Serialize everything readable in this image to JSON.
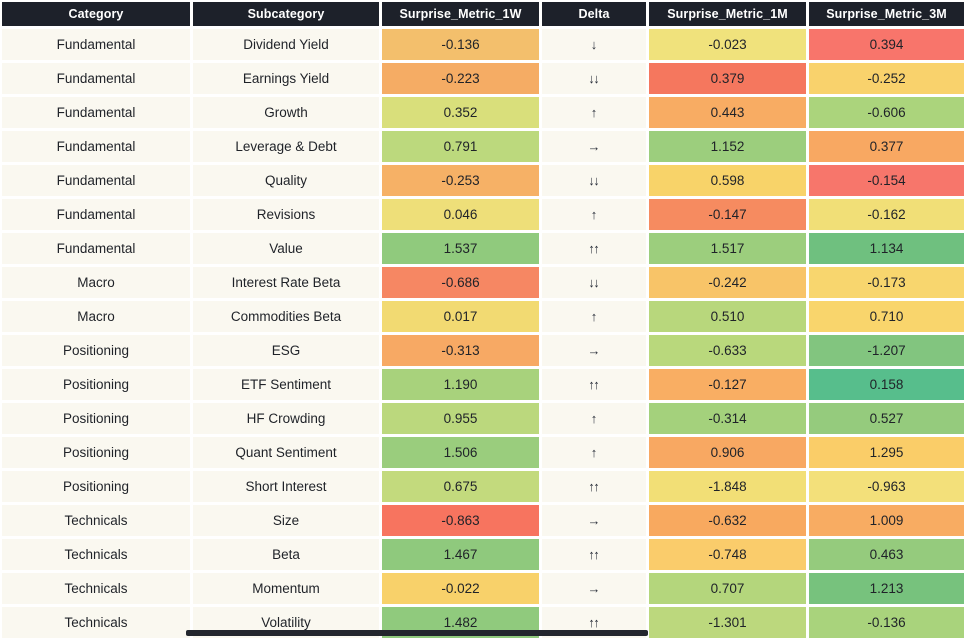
{
  "chart_data": {
    "type": "table",
    "title": "Factor surprise metrics heatmap table",
    "columns": [
      "Category",
      "Subcategory",
      "Surprise_Metric_1W",
      "Delta",
      "Surprise_Metric_1M",
      "Surprise_Metric_3M"
    ],
    "rows": [
      {
        "category": "Fundamental",
        "subcategory": "Dividend Yield",
        "surprise_1w": "-0.136",
        "surprise_1w_color": "#F3BF6C",
        "delta": "↓",
        "surprise_1m": "-0.023",
        "surprise_1m_color": "#F0E27C",
        "surprise_3m": "0.394",
        "surprise_3m_color": "#F8756B"
      },
      {
        "category": "Fundamental",
        "subcategory": "Earnings Yield",
        "surprise_1w": "-0.223",
        "surprise_1w_color": "#F5AC64",
        "delta": "↓↓",
        "surprise_1m": "0.379",
        "surprise_1m_color": "#F5775E",
        "surprise_3m": "-0.252",
        "surprise_3m_color": "#F9D26C"
      },
      {
        "category": "Fundamental",
        "subcategory": "Growth",
        "surprise_1w": "0.352",
        "surprise_1w_color": "#D9DF7B",
        "delta": "↑",
        "surprise_1m": "0.443",
        "surprise_1m_color": "#F8AC63",
        "surprise_3m": "-0.606",
        "surprise_3m_color": "#ABD47C"
      },
      {
        "category": "Fundamental",
        "subcategory": "Leverage & Debt",
        "surprise_1w": "0.791",
        "surprise_1w_color": "#BCD97D",
        "delta": "→",
        "surprise_1m": "1.152",
        "surprise_1m_color": "#9CCE7D",
        "surprise_3m": "0.377",
        "surprise_3m_color": "#F8A862"
      },
      {
        "category": "Fundamental",
        "subcategory": "Quality",
        "surprise_1w": "-0.253",
        "surprise_1w_color": "#F6B166",
        "delta": "↓↓",
        "surprise_1m": "0.598",
        "surprise_1m_color": "#F8D369",
        "surprise_3m": "-0.154",
        "surprise_3m_color": "#F7766B"
      },
      {
        "category": "Fundamental",
        "subcategory": "Revisions",
        "surprise_1w": "0.046",
        "surprise_1w_color": "#EEDF79",
        "delta": "↑",
        "surprise_1m": "-0.147",
        "surprise_1m_color": "#F68B60",
        "surprise_3m": "-0.162",
        "surprise_3m_color": "#F1DF77"
      },
      {
        "category": "Fundamental",
        "subcategory": "Value",
        "surprise_1w": "1.537",
        "surprise_1w_color": "#90CA7D",
        "delta": "↑↑",
        "surprise_1m": "1.517",
        "surprise_1m_color": "#9CCE7D",
        "surprise_3m": "1.134",
        "surprise_3m_color": "#6FC07F"
      },
      {
        "category": "Macro",
        "subcategory": "Interest Rate Beta",
        "surprise_1w": "-0.686",
        "surprise_1w_color": "#F68763",
        "delta": "↓↓",
        "surprise_1m": "-0.242",
        "surprise_1m_color": "#F8C468",
        "surprise_3m": "-0.173",
        "surprise_3m_color": "#F8D66E"
      },
      {
        "category": "Macro",
        "subcategory": "Commodities Beta",
        "surprise_1w": "0.017",
        "surprise_1w_color": "#F2DA72",
        "delta": "↑",
        "surprise_1m": "0.510",
        "surprise_1m_color": "#B8D77C",
        "surprise_3m": "0.710",
        "surprise_3m_color": "#F9D56C"
      },
      {
        "category": "Positioning",
        "subcategory": "ESG",
        "surprise_1w": "-0.313",
        "surprise_1w_color": "#F7A964",
        "delta": "→",
        "surprise_1m": "-0.633",
        "surprise_1m_color": "#B9D87C",
        "surprise_3m": "-1.207",
        "surprise_3m_color": "#82C57F"
      },
      {
        "category": "Positioning",
        "subcategory": "ETF Sentiment",
        "surprise_1w": "1.190",
        "surprise_1w_color": "#A8D27C",
        "delta": "↑↑",
        "surprise_1m": "-0.127",
        "surprise_1m_color": "#F9AE63",
        "surprise_3m": "0.158",
        "surprise_3m_color": "#57BE8C"
      },
      {
        "category": "Positioning",
        "subcategory": "HF Crowding",
        "surprise_1w": "0.955",
        "surprise_1w_color": "#BBD87D",
        "delta": "↑",
        "surprise_1m": "-0.314",
        "surprise_1m_color": "#A4D17C",
        "surprise_3m": "0.527",
        "surprise_3m_color": "#95CB7D"
      },
      {
        "category": "Positioning",
        "subcategory": "Quant Sentiment",
        "surprise_1w": "1.506",
        "surprise_1w_color": "#9ACD7D",
        "delta": "↑",
        "surprise_1m": "0.906",
        "surprise_1m_color": "#F8A862",
        "surprise_3m": "1.295",
        "surprise_3m_color": "#FACD68"
      },
      {
        "category": "Positioning",
        "subcategory": "Short Interest",
        "surprise_1w": "0.675",
        "surprise_1w_color": "#C3DA7D",
        "delta": "↑↑",
        "surprise_1m": "-1.848",
        "surprise_1m_color": "#F2DF76",
        "surprise_3m": "-0.963",
        "surprise_3m_color": "#F3E07A"
      },
      {
        "category": "Technicals",
        "subcategory": "Size",
        "surprise_1w": "-0.863",
        "surprise_1w_color": "#F7745F",
        "delta": "→",
        "surprise_1m": "-0.632",
        "surprise_1m_color": "#F8A95F",
        "surprise_3m": "1.009",
        "surprise_3m_color": "#F8AC62"
      },
      {
        "category": "Technicals",
        "subcategory": "Beta",
        "surprise_1w": "1.467",
        "surprise_1w_color": "#8FC97D",
        "delta": "↑↑",
        "surprise_1m": "-0.748",
        "surprise_1m_color": "#FACC6B",
        "surprise_3m": "0.463",
        "surprise_3m_color": "#95CB7D"
      },
      {
        "category": "Technicals",
        "subcategory": "Momentum",
        "surprise_1w": "-0.022",
        "surprise_1w_color": "#F8D16A",
        "delta": "→",
        "surprise_1m": "0.707",
        "surprise_1m_color": "#B4D67C",
        "surprise_3m": "1.213",
        "surprise_3m_color": "#77C27D"
      },
      {
        "category": "Technicals",
        "subcategory": "Volatility",
        "surprise_1w": "1.482",
        "surprise_1w_color": "#90CA7D",
        "delta": "↑↑",
        "surprise_1m": "-1.301",
        "surprise_1m_color": "#BCD87D",
        "surprise_3m": "-0.136",
        "surprise_3m_color": "#A9D37C"
      }
    ],
    "layout_hints": {
      "value_precision": 3,
      "color_scale": "red-yellow-green heatmap per cell",
      "grid": "white 3px gaps between cells"
    }
  },
  "colors": {
    "header_bg": "#1D212A",
    "header_text": "#FFFFFF",
    "row_bg": "#FAF8F0",
    "body_text": "#1F2228",
    "arrow_text": "#2A2F3A",
    "gap": "#FFFFFF",
    "scrollbar_thumb": "#23262E"
  }
}
